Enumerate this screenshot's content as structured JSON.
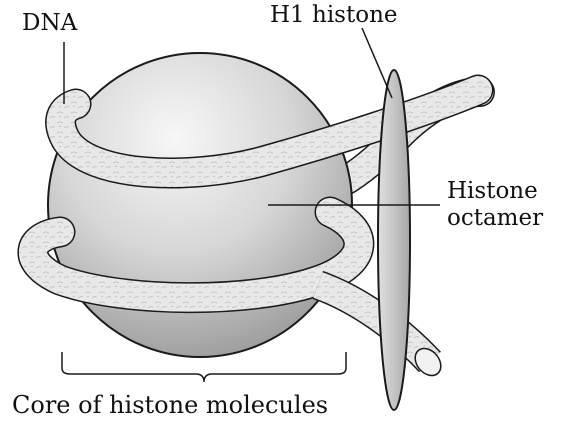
{
  "labels": {
    "dna": "DNA",
    "h1_histone": "H1 histone",
    "histone_octamer_line1": "Histone",
    "histone_octamer_line2": "octamer",
    "core": "Core of histone molecules"
  },
  "colors": {
    "outline": "#1a1a1a",
    "sphere_light": "#f4f4f4",
    "sphere_dark": "#8f8f8f",
    "dna_fill": "#e6e6e6",
    "h1_fill": "#cfcfcf"
  }
}
